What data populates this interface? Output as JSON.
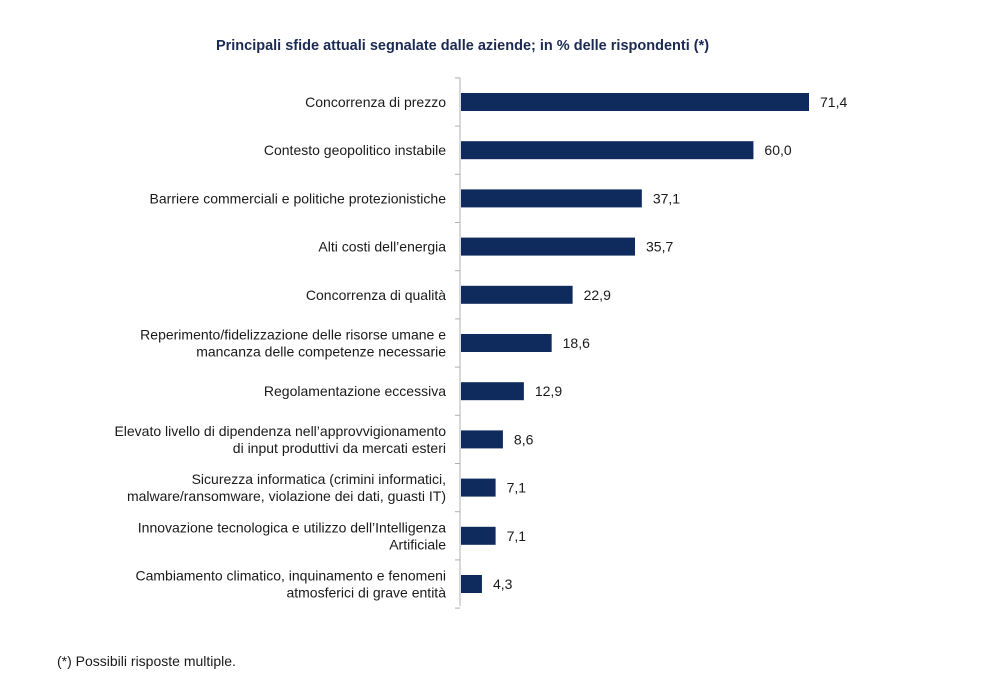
{
  "chart_data": {
    "type": "bar",
    "orientation": "horizontal",
    "title": "Principali sfide attuali segnalate dalle aziende; in % delle rispondenti (*)",
    "categories": [
      [
        "Concorrenza di prezzo"
      ],
      [
        "Contesto geopolitico instabile"
      ],
      [
        "Barriere commerciali e politiche protezionistiche"
      ],
      [
        "Alti costi dell’energia"
      ],
      [
        "Concorrenza di qualità"
      ],
      [
        "Reperimento/fidelizzazione delle risorse umane e",
        "mancanza delle competenze necessarie"
      ],
      [
        "Regolamentazione eccessiva"
      ],
      [
        "Elevato livello di dipendenza nell’approvvigionamento",
        "di input produttivi da mercati esteri"
      ],
      [
        "Sicurezza informatica (crimini informatici,",
        "malware/ransomware, violazione dei dati, guasti IT)"
      ],
      [
        "Innovazione tecnologica e utilizzo dell’Intelligenza",
        "Artificiale"
      ],
      [
        "Cambiamento climatico, inquinamento e fenomeni",
        "atmosferici di grave entità"
      ]
    ],
    "values": [
      71.4,
      60.0,
      37.1,
      35.7,
      22.9,
      18.6,
      12.9,
      8.6,
      7.1,
      7.1,
      4.3
    ],
    "value_labels": [
      "71,4",
      "60,0",
      "37,1",
      "35,7",
      "22,9",
      "18,6",
      "12,9",
      "8,6",
      "7,1",
      "7,1",
      "4,3"
    ],
    "xlim": [
      0,
      75
    ],
    "xlabel": "",
    "ylabel": "",
    "grid": false,
    "bar_color": "#0f2a5c",
    "axis_color": "#b0b0b0"
  },
  "footnote": "(*) Possibili risposte multiple."
}
